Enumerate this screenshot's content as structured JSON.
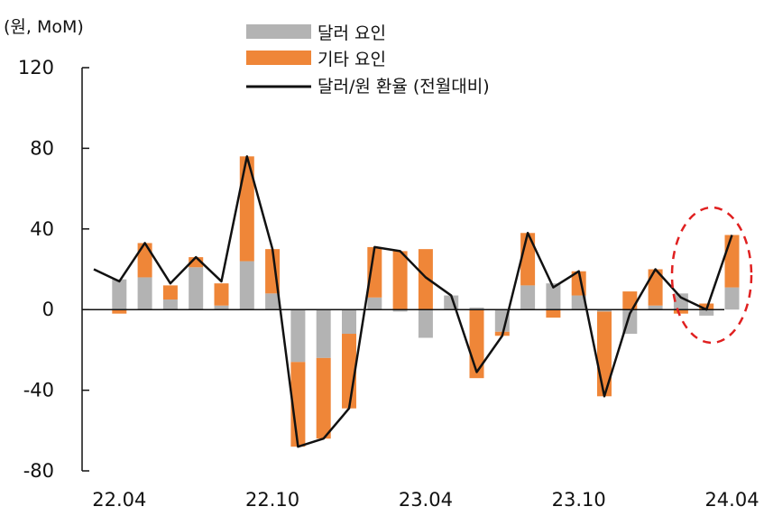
{
  "chart_data": {
    "type": "bar",
    "stacked": true,
    "unit_label": "(원, MoM)",
    "ylim": [
      -80,
      120
    ],
    "yticks": [
      "120",
      "80",
      "40",
      "0",
      "-40",
      "-80"
    ],
    "ytick_values": [
      120,
      80,
      40,
      0,
      -40,
      -80
    ],
    "x_tick_labels": [
      {
        "label": "22.04",
        "index": 1
      },
      {
        "label": "22.10",
        "index": 7
      },
      {
        "label": "23.04",
        "index": 13
      },
      {
        "label": "23.10",
        "index": 19
      },
      {
        "label": "24.04",
        "index": 25
      }
    ],
    "categories": [
      "22.03",
      "22.04",
      "22.05",
      "22.06",
      "22.07",
      "22.08",
      "22.09",
      "22.10",
      "22.11",
      "22.12",
      "23.01",
      "23.02",
      "23.03",
      "23.04",
      "23.05",
      "23.06",
      "23.07",
      "23.08",
      "23.09",
      "23.10",
      "23.11",
      "23.12",
      "24.01",
      "24.02",
      "24.03",
      "24.04"
    ],
    "series": [
      {
        "name": "달러 요인",
        "color": "#b3b3b3",
        "values": [
          null,
          15,
          16,
          5,
          21,
          2,
          24,
          8,
          -26,
          -24,
          -12,
          6,
          -1,
          -14,
          7,
          1,
          -11,
          12,
          13,
          7,
          -1,
          -12,
          2,
          8,
          -3,
          11
        ]
      },
      {
        "name": "기타 요인",
        "color": "#ef8638",
        "values": [
          null,
          -2,
          17,
          7,
          5,
          11,
          52,
          22,
          -42,
          -40,
          -37,
          25,
          29,
          30,
          0,
          -34,
          -2,
          26,
          -4,
          12,
          -42,
          9,
          18,
          -2,
          3,
          26
        ]
      },
      {
        "name": "달러/원 환율 (전월대비)",
        "color": "#111111",
        "type": "line",
        "values": [
          20,
          14,
          33,
          13,
          26,
          14,
          76,
          30,
          -68,
          -64,
          -49,
          31,
          29,
          16,
          7,
          -31,
          -13,
          38,
          11,
          19,
          -43,
          -2,
          20,
          6,
          0,
          37
        ]
      }
    ],
    "legend": [
      "달러 요인",
      "기타 요인",
      "달러/원 환율 (전월대비)"
    ],
    "legend_position": "top-center",
    "highlight": {
      "shape": "dashed-ellipse",
      "color": "#e02020",
      "around": "24.04"
    },
    "grid": false
  }
}
